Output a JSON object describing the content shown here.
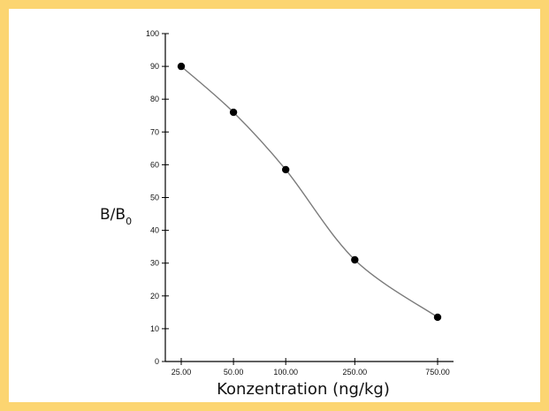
{
  "chart_data": {
    "type": "line",
    "x": [
      "25.00",
      "50.00",
      "100.00",
      "250.00",
      "750.00"
    ],
    "values": [
      90,
      76,
      58.5,
      31,
      13.5
    ],
    "xlabel": "Konzentration (ng/kg)",
    "ylabel_main": "B/B",
    "ylabel_sub": "0",
    "ylim": [
      0,
      100
    ],
    "yticks": [
      0,
      10,
      20,
      30,
      40,
      50,
      60,
      70,
      80,
      90,
      100
    ],
    "xlog": true,
    "grid": false,
    "colors": {
      "frame": "#fcd571",
      "line": "#7a7a7a",
      "marker": "#000000",
      "axis": "#000000"
    }
  }
}
